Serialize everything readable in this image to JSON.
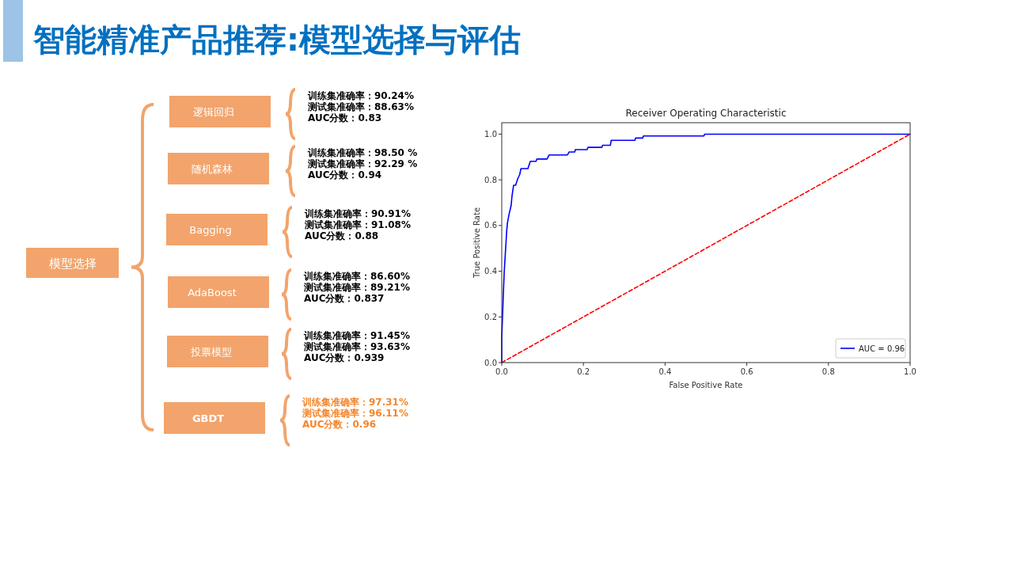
{
  "chart_data": [
    {
      "type": "other",
      "title": "智能精准产品推荐:模型选择与评估",
      "annotations": [
        "模型选择",
        "逻辑回归",
        "训练集准确率：90.24%",
        "测试集准确率：88.63%",
        "AUC分数：0.83",
        "随机森林",
        "训练集准确率：98.50 %",
        "测试集准确率：92.29 %",
        "AUC分数：0.94",
        "Bagging",
        "训练集准确率：90.91%",
        "测试集准确率：91.08%",
        "AUC分数：0.88",
        "AdaBoost",
        "训练集准确率：86.60%",
        "测试集准确率：89.21%",
        "AUC分数：0.837",
        "投票模型",
        "训练集准确率：91.45%",
        "测试集准确率：93.63%",
        "AUC分数：0.939",
        "GBDT",
        "训练集准确率：97.31%",
        "测试集准确率：96.11%",
        "AUC分数：0.96"
      ]
    },
    {
      "type": "line",
      "title": "Receiver Operating Characteristic",
      "xlabel": "False Positive Rate",
      "ylabel": "True Positive Rate",
      "xlim": [
        0,
        1
      ],
      "ylim": [
        0,
        1.05
      ],
      "xticks": [
        {
          "value": 0,
          "label": "0.0"
        },
        {
          "value": 0.2,
          "label": "0.2"
        },
        {
          "value": 0.4,
          "label": "0.4"
        },
        {
          "value": 0.6,
          "label": "0.6"
        },
        {
          "value": 0.8,
          "label": "0.8"
        },
        {
          "value": 1,
          "label": "1.0"
        }
      ],
      "yticks": [
        {
          "value": 0,
          "label": "0.0"
        },
        {
          "value": 0.2,
          "label": "0.2"
        },
        {
          "value": 0.4,
          "label": "0.4"
        },
        {
          "value": 0.6,
          "label": "0.6"
        },
        {
          "value": 0.8,
          "label": "0.8"
        },
        {
          "value": 1,
          "label": "1.0"
        }
      ],
      "grid": false,
      "legend": "bottom right",
      "series": [
        {
          "name": "AUC = 0.96",
          "color": "#0000ff",
          "line_style": "solid",
          "x": [
            0,
            0,
            0.004,
            0.006,
            0.009,
            0.012,
            0.014,
            0.018,
            0.023,
            0.025,
            0.029,
            0.034,
            0.039,
            0.044,
            0.047,
            0.064,
            0.07,
            0.084,
            0.086,
            0.111,
            0.116,
            0.161,
            0.165,
            0.179,
            0.18,
            0.209,
            0.211,
            0.245,
            0.247,
            0.266,
            0.268,
            0.326,
            0.328,
            0.345,
            0.347,
            0.495,
            0.497,
            1
          ],
          "values": [
            0,
            0.11,
            0.305,
            0.395,
            0.483,
            0.573,
            0.612,
            0.65,
            0.688,
            0.727,
            0.776,
            0.776,
            0.804,
            0.823,
            0.849,
            0.849,
            0.881,
            0.881,
            0.891,
            0.891,
            0.909,
            0.909,
            0.922,
            0.922,
            0.932,
            0.932,
            0.942,
            0.942,
            0.951,
            0.951,
            0.973,
            0.973,
            0.983,
            0.983,
            0.992,
            0.992,
            1,
            1
          ]
        },
        {
          "color": "#ff0000",
          "line_style": "dashed",
          "x": [
            0,
            1
          ],
          "values": [
            0,
            1
          ]
        }
      ]
    }
  ]
}
